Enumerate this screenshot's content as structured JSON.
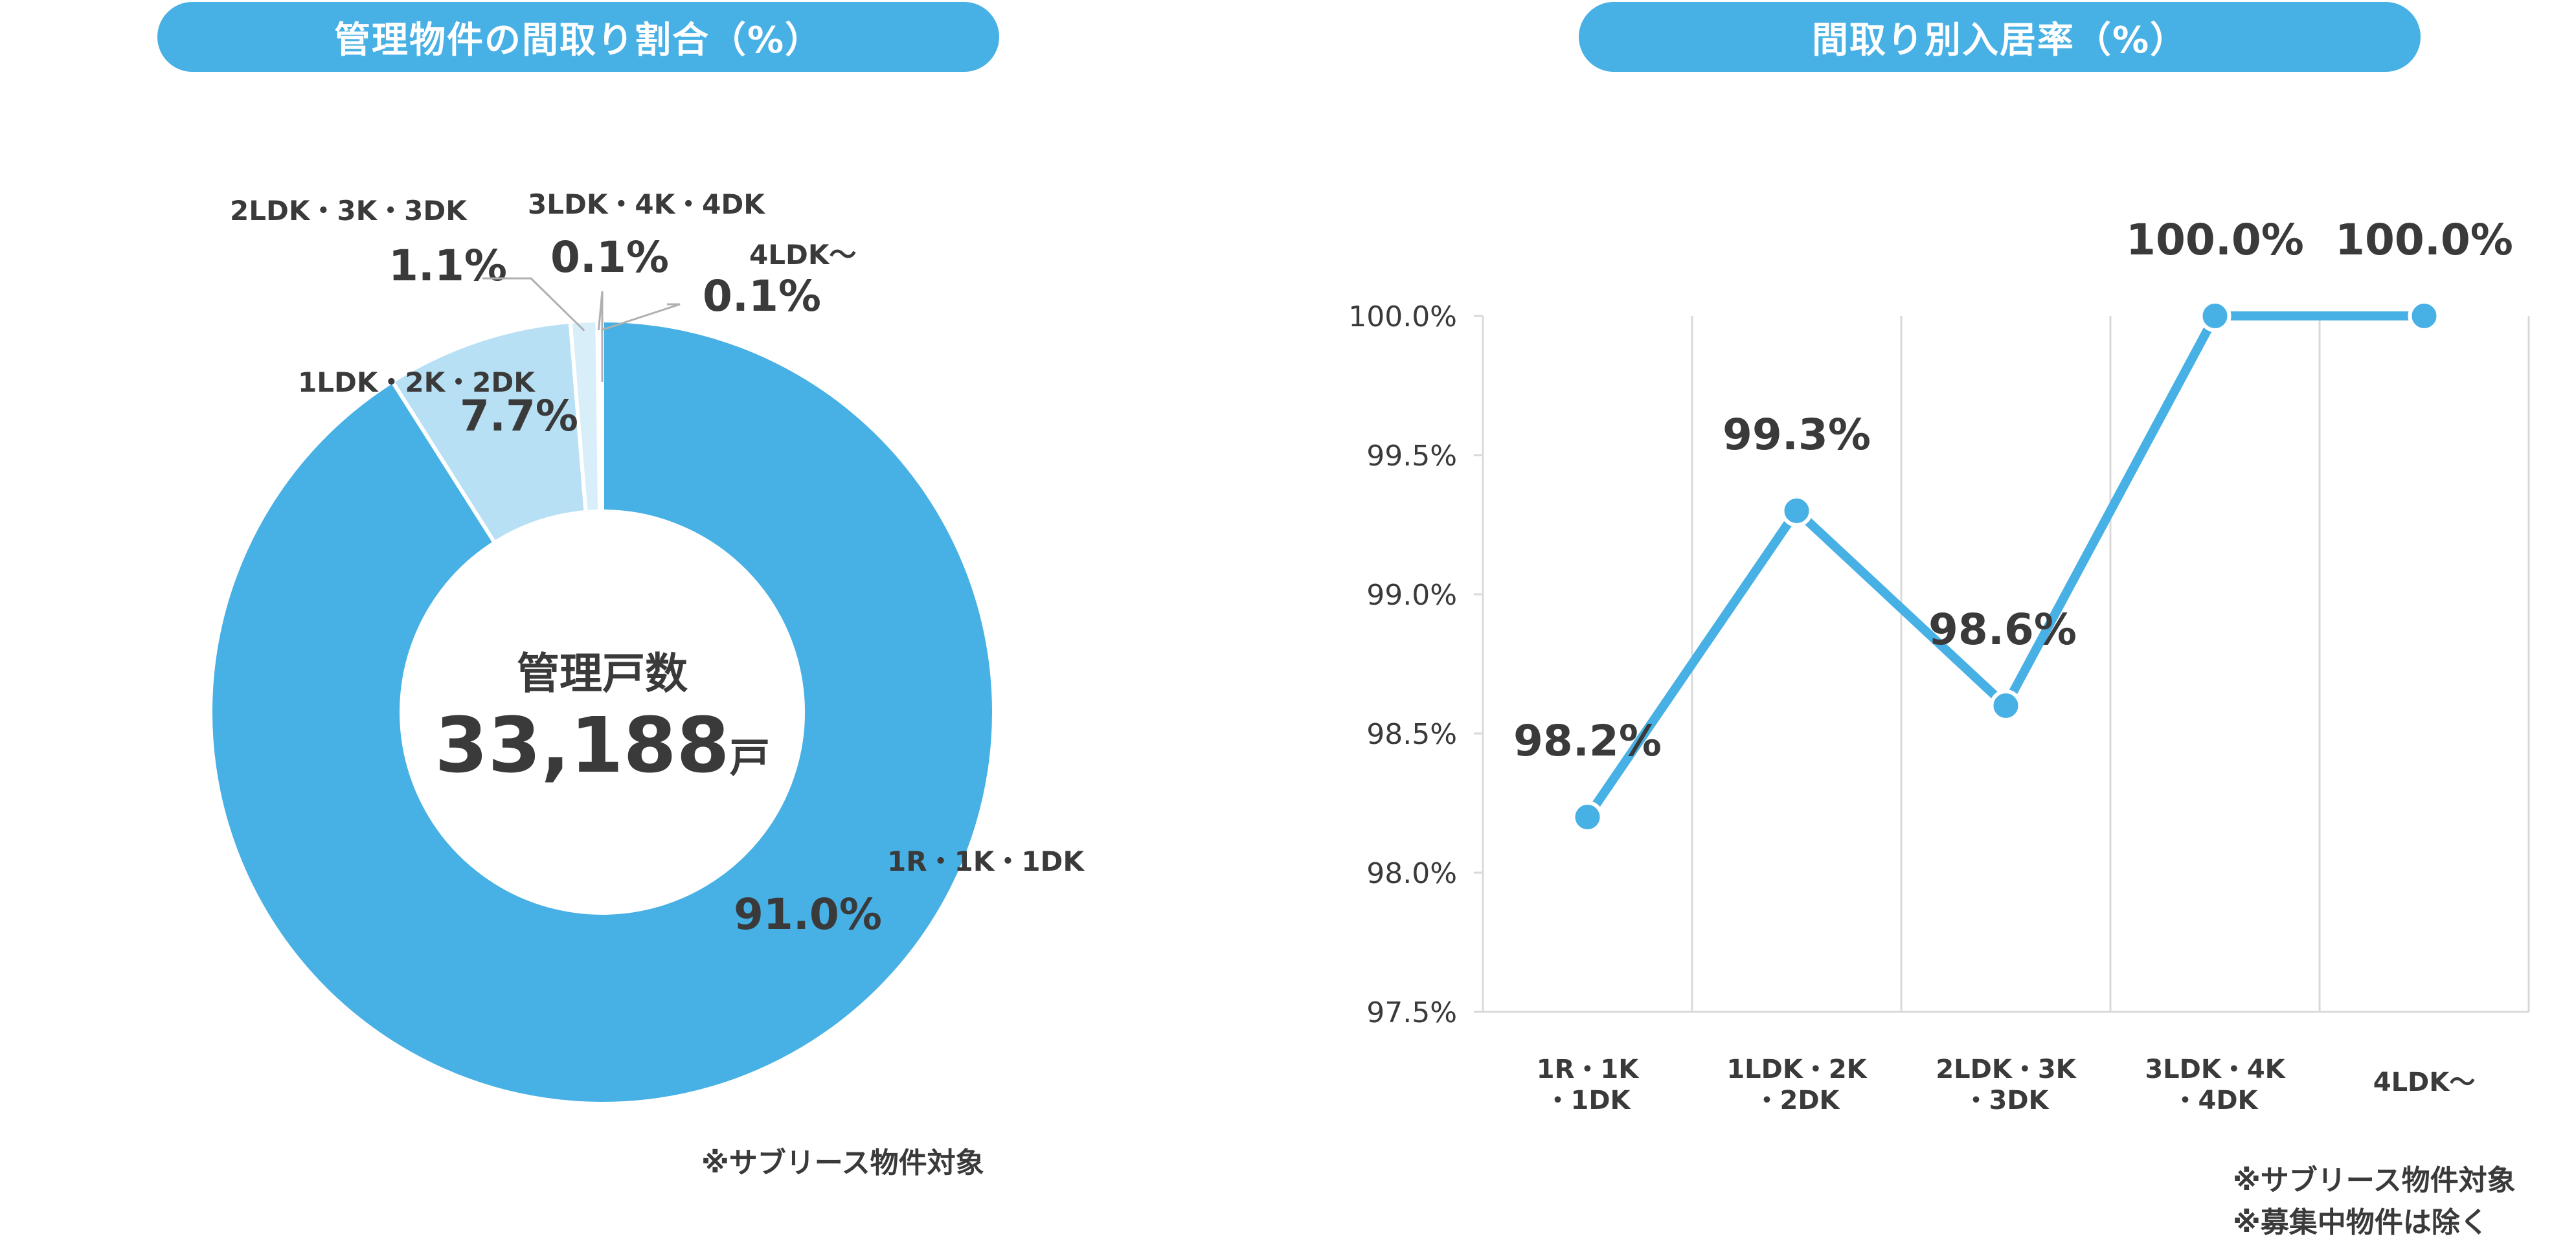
{
  "left_panel": {
    "title": "管理物件の間取り割合（%）",
    "center_label": "管理戸数",
    "center_value": "33,188",
    "center_unit": "戸",
    "note": "※サブリース物件対象"
  },
  "right_panel": {
    "title": "間取り別入居率（%）",
    "notes": [
      "※サブリース物件対象",
      "※募集中物件は除く"
    ]
  },
  "colors": {
    "accent": "#47b0e4",
    "slice_light": "#b8e0f5",
    "slice_pale": "#d8eef9",
    "text": "#3a3a3a",
    "grid": "#d9d9d9"
  },
  "chart_data": [
    {
      "type": "pie",
      "variant": "donut",
      "categories": [
        "1R・1K・1DK",
        "1LDK・2K・2DK",
        "2LDK・3K・3DK",
        "3LDK・4K・4DK",
        "4LDK〜"
      ],
      "values": [
        91.0,
        7.7,
        1.1,
        0.1,
        0.1
      ],
      "value_labels": [
        "91.0%",
        "7.7%",
        "1.1%",
        "0.1%",
        "0.1%"
      ]
    },
    {
      "type": "line",
      "categories": [
        [
          "1R・1K",
          "・1DK"
        ],
        [
          "1LDK・2K",
          "・2DK"
        ],
        [
          "2LDK・3K",
          "・3DK"
        ],
        [
          "3LDK・4K",
          "・4DK"
        ],
        [
          "4LDK〜"
        ]
      ],
      "values": [
        98.2,
        99.3,
        98.6,
        100.0,
        100.0
      ],
      "value_labels": [
        "98.2%",
        "99.3%",
        "98.6%",
        "100.0%",
        "100.0%"
      ],
      "ylim": [
        97.5,
        100.0
      ],
      "yticks": [
        "97.5%",
        "98.0%",
        "98.5%",
        "99.0%",
        "99.5%",
        "100.0%"
      ],
      "grid": true
    }
  ]
}
